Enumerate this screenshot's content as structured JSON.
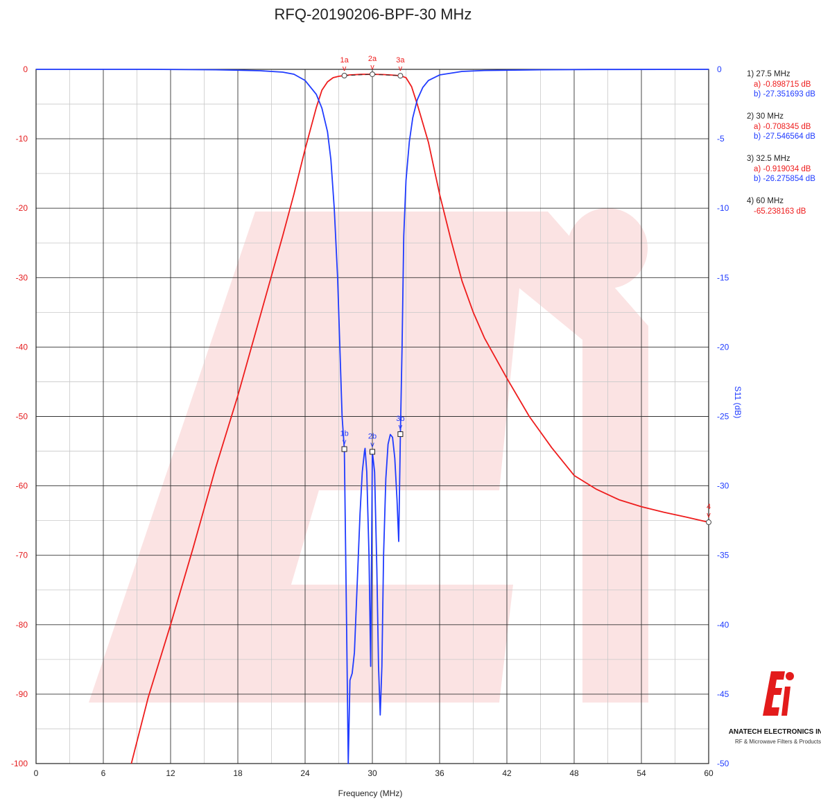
{
  "chart_data": {
    "type": "line",
    "title": "RFQ-20190206-BPF-30 MHz",
    "xlabel": "Frequency (MHz)",
    "ylabel_left": "",
    "ylabel_right": "S11 (dB)",
    "xlim": [
      0,
      60
    ],
    "ylim_left": [
      -100,
      0
    ],
    "ylim_right": [
      -50,
      0
    ],
    "x_ticks": [
      0,
      6,
      12,
      18,
      24,
      30,
      36,
      42,
      48,
      54,
      60
    ],
    "y_ticks_left": [
      0,
      -10,
      -20,
      -30,
      -40,
      -50,
      -60,
      -70,
      -80,
      -90,
      -100
    ],
    "y_ticks_right": [
      0,
      -5,
      -10,
      -15,
      -20,
      -25,
      -30,
      -35,
      -40,
      -45,
      -50
    ],
    "grid": true,
    "colors": {
      "s21": "#ee1c1c",
      "s11": "#1f3bff",
      "watermark": "#fbe3e3"
    },
    "series": [
      {
        "axis": "left",
        "x": [
          8.5,
          10,
          12,
          14,
          16,
          18,
          20,
          22,
          23,
          24,
          25,
          25.5,
          26,
          26.5,
          27,
          27.5,
          28,
          29,
          30,
          31,
          32,
          32.5,
          33,
          33.5,
          34,
          35,
          36,
          37,
          38,
          39,
          40,
          42,
          44,
          46,
          48,
          50,
          52,
          54,
          56,
          58,
          60
        ],
        "values": [
          -100,
          -90.5,
          -80,
          -69,
          -57.5,
          -47,
          -35.5,
          -24,
          -18,
          -11.5,
          -5.5,
          -3,
          -1.8,
          -1.2,
          -1.0,
          -0.899,
          -0.8,
          -0.72,
          -0.708,
          -0.75,
          -0.85,
          -0.919,
          -1.2,
          -2.5,
          -5,
          -10.5,
          -18,
          -24.5,
          -30.5,
          -35,
          -38.7,
          -44.5,
          -50,
          -54.5,
          -58.5,
          -60.5,
          -62,
          -63,
          -63.8,
          -64.5,
          -65.24
        ]
      },
      {
        "axis": "right",
        "x": [
          0,
          10,
          16,
          18,
          20,
          22,
          23,
          24,
          25,
          25.5,
          26,
          26.3,
          26.6,
          26.9,
          27.1,
          27.3,
          27.5,
          27.7,
          27.85,
          28,
          28.2,
          28.4,
          28.6,
          28.9,
          29.1,
          29.3,
          29.35,
          29.5,
          29.7,
          29.85,
          30,
          30.2,
          30.4,
          30.55,
          30.7,
          30.85,
          31,
          31.2,
          31.4,
          31.6,
          31.8,
          32.0,
          32.2,
          32.35,
          32.5,
          32.65,
          32.8,
          33.0,
          33.3,
          33.6,
          34,
          34.5,
          35,
          36,
          38,
          40,
          45,
          50,
          60
        ],
        "values": [
          0,
          0,
          -0.03,
          -0.06,
          -0.1,
          -0.2,
          -0.35,
          -0.8,
          -1.8,
          -2.8,
          -4.5,
          -6.5,
          -10,
          -15,
          -20,
          -25,
          -27.35,
          -40,
          -50,
          -44,
          -43.5,
          -42,
          -38,
          -32,
          -29,
          -27.5,
          -27.3,
          -29,
          -35,
          -43,
          -27.55,
          -29,
          -36,
          -43,
          -46.5,
          -43,
          -35,
          -29.5,
          -27,
          -26.3,
          -26.5,
          -28,
          -31,
          -34,
          -26.28,
          -20,
          -12,
          -8,
          -5.2,
          -3.5,
          -2.2,
          -1.3,
          -0.8,
          -0.4,
          -0.15,
          -0.08,
          -0.03,
          -0.01,
          0
        ]
      }
    ],
    "markers": [
      {
        "label": "1a",
        "x": 27.5,
        "y": -0.898715,
        "axis": "left"
      },
      {
        "label": "2a",
        "x": 30,
        "y": -0.708345,
        "axis": "left"
      },
      {
        "label": "3a",
        "x": 32.5,
        "y": -0.919034,
        "axis": "left"
      },
      {
        "label": "4",
        "x": 60,
        "y": -65.238163,
        "axis": "left"
      },
      {
        "label": "1b",
        "x": 27.5,
        "y": -27.351693,
        "axis": "right"
      },
      {
        "label": "2b",
        "x": 30,
        "y": -27.546564,
        "axis": "right"
      },
      {
        "label": "3b",
        "x": 32.5,
        "y": -26.275854,
        "axis": "right"
      }
    ],
    "marker_caret": "v",
    "legend": [
      {
        "head": "1) 27.5 MHz",
        "a": "a) -0.898715 dB",
        "b": "b) -27.351693 dB"
      },
      {
        "head": "2) 30 MHz",
        "a": "a) -0.708345 dB",
        "b": "b) -27.546564 dB"
      },
      {
        "head": "3) 32.5 MHz",
        "a": "a) -0.919034 dB",
        "b": "b) -26.275854 dB"
      },
      {
        "head": "4) 60 MHz",
        "a": "-65.238163 dB",
        "b": ""
      }
    ]
  },
  "logo": {
    "company": "ANATECH ELECTRONICS INC",
    "tagline": "RF & Microwave Filters & Products"
  }
}
